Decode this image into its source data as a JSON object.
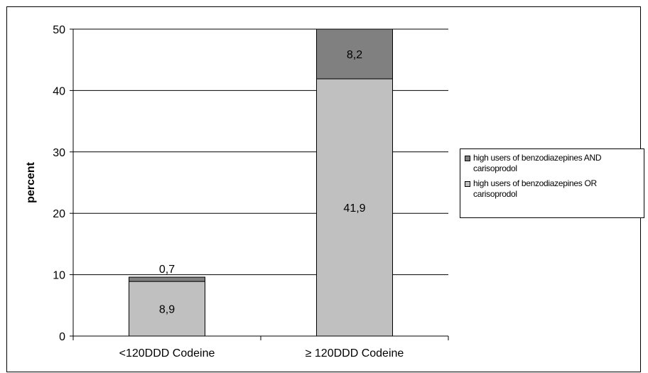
{
  "chart_data": {
    "type": "bar",
    "stacked": true,
    "categories": [
      "<120DDD Codeine",
      "≥ 120DDD Codeine"
    ],
    "series": [
      {
        "name": "high users of benzodiazepines OR carisoprodol",
        "values": [
          8.9,
          41.9
        ],
        "labels": [
          "8,9",
          "41,9"
        ],
        "color": "#c0c0c0"
      },
      {
        "name": "high users of benzodiazepines AND carisoprodol",
        "values": [
          0.7,
          8.2
        ],
        "labels": [
          "0,7",
          "8,2"
        ],
        "color": "#808080"
      }
    ],
    "ylabel": "percent",
    "xlabel": "",
    "ylim": [
      0,
      50
    ],
    "yticks": [
      "0",
      "10",
      "20",
      "30",
      "40",
      "50"
    ],
    "grid": true,
    "legend_position": "right"
  },
  "legend": {
    "items": [
      {
        "label": "high users of benzodiazepines AND carisoprodol",
        "color": "#808080"
      },
      {
        "label": "high users of benzodiazepines OR carisoprodol",
        "color": "#c0c0c0"
      }
    ]
  }
}
